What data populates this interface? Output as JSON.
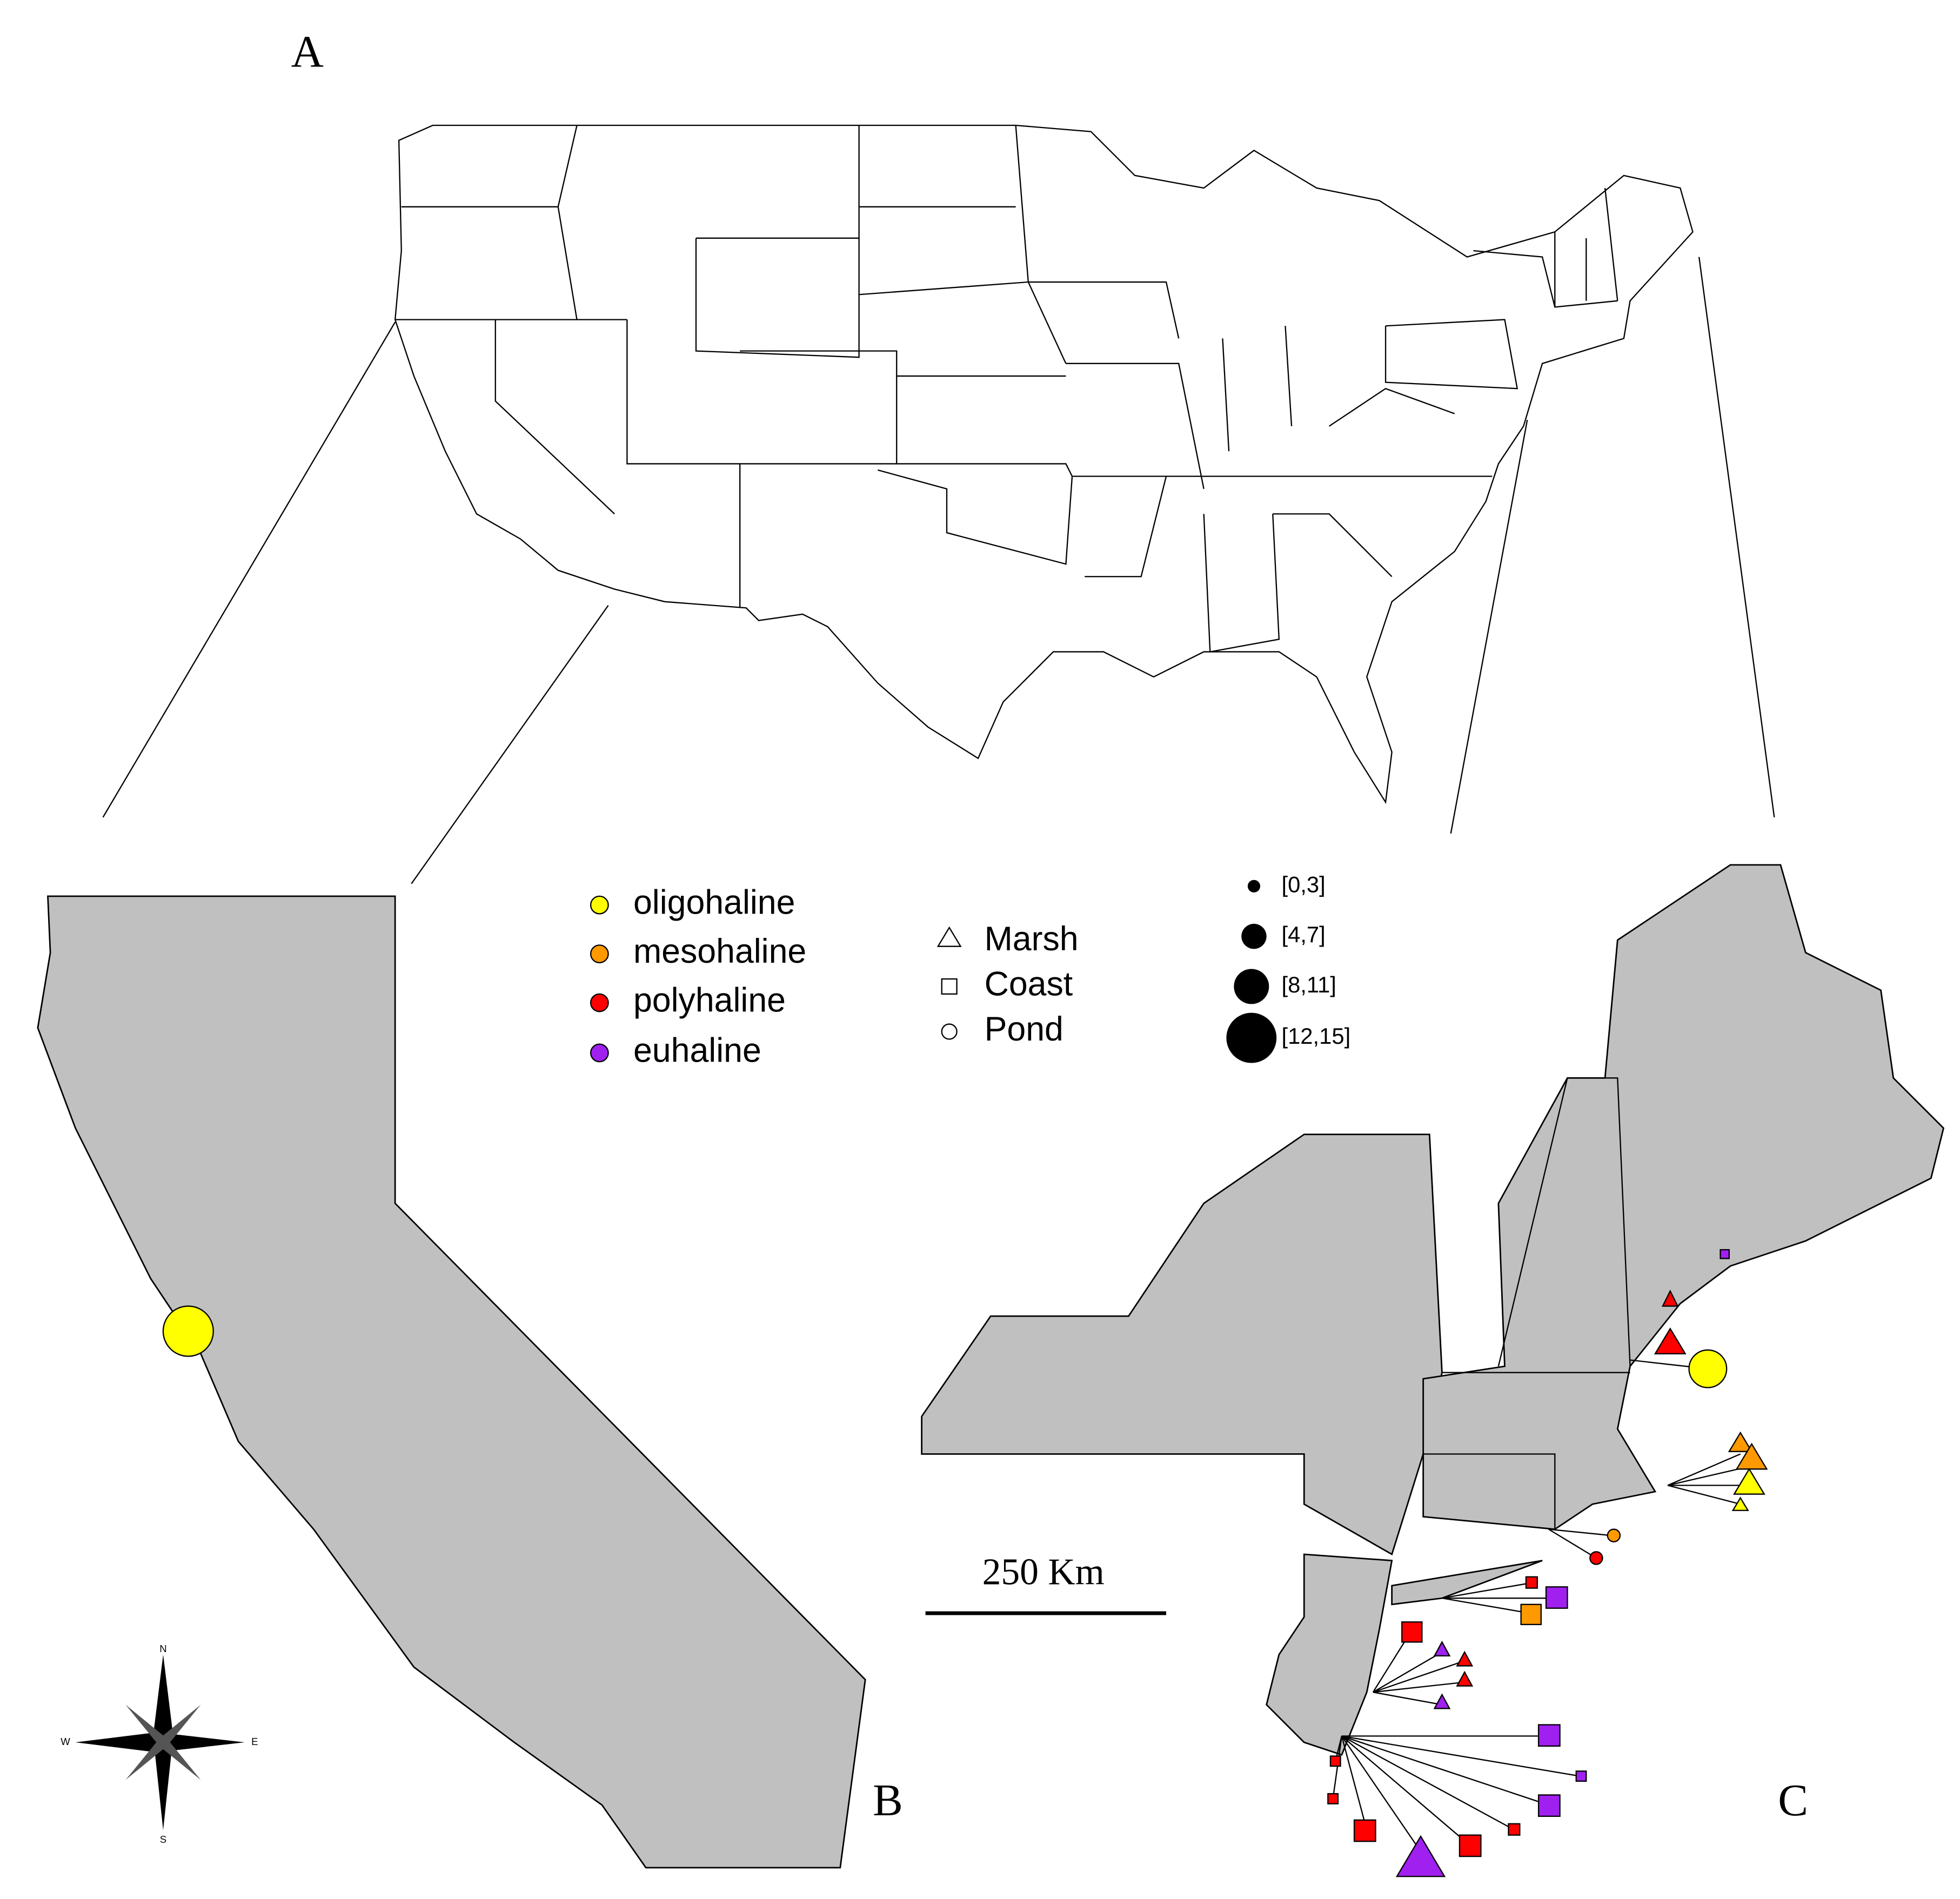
{
  "panels": {
    "a": "A",
    "b": "B",
    "c": "C"
  },
  "legend": {
    "salinity": [
      "oligohaline",
      "mesohaline",
      "polyhaline",
      "euhaline"
    ],
    "habitat": [
      "Marsh",
      "Coast",
      "Pond"
    ],
    "sample_size": [
      "[0,3]",
      "[4,7]",
      "[8,11]",
      "[12,15]"
    ]
  },
  "scale_bar": "250 Km",
  "compass": {
    "n": "N",
    "s": "S",
    "e": "E",
    "w": "W"
  }
}
